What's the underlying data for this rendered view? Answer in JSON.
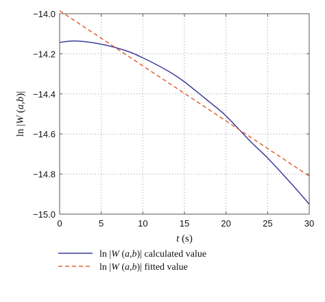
{
  "chart_data": {
    "type": "line",
    "xlabel": "t (s)",
    "ylabel": "ln |W (a,b)|",
    "xlim": [
      0,
      30
    ],
    "ylim": [
      -15.0,
      -14.0
    ],
    "x_ticks": [
      0,
      5,
      10,
      15,
      20,
      25,
      30
    ],
    "x_tick_labels": [
      "0",
      "5",
      "10",
      "15",
      "20",
      "25",
      "30"
    ],
    "y_ticks": [
      -14.0,
      -14.2,
      -14.4,
      -14.6,
      -14.8,
      -15.0
    ],
    "y_tick_labels": [
      "−14.0",
      "−14.2",
      "−14.4",
      "−14.6",
      "−14.8",
      "−15.0"
    ],
    "grid": true,
    "legend_position": "bottom",
    "series": [
      {
        "name": "ln |W (a,b)| calculated value",
        "color": "#3a3a9a",
        "style": "solid",
        "x": [
          0,
          2,
          5,
          8,
          10,
          13,
          15,
          18,
          20,
          23,
          25,
          28,
          30
        ],
        "y": [
          -14.143,
          -14.136,
          -14.152,
          -14.185,
          -14.22,
          -14.285,
          -14.34,
          -14.44,
          -14.51,
          -14.64,
          -14.72,
          -14.855,
          -14.95
        ]
      },
      {
        "name": "ln |W (a,b)| fitted value",
        "color": "#e06030",
        "style": "dashed",
        "x": [
          0,
          30
        ],
        "y": [
          -13.985,
          -14.81
        ]
      }
    ]
  }
}
